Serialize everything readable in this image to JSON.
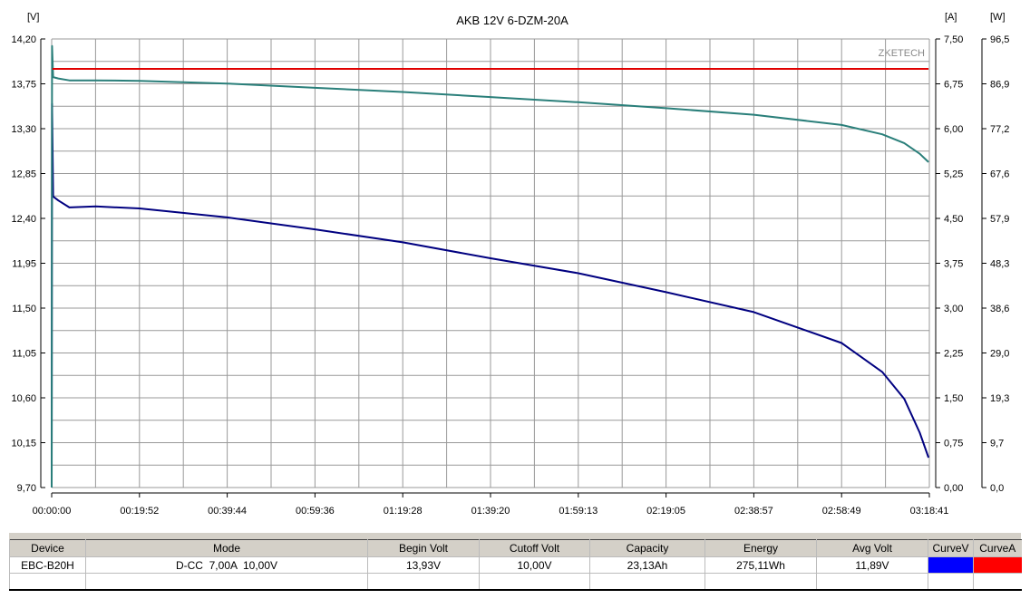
{
  "chart_data": {
    "type": "line",
    "title": "AKB 12V 6-DZM-20A",
    "watermark": "ZKETECH",
    "left_axis": {
      "unit": "[V]",
      "range": [
        9.7,
        14.2
      ],
      "ticks": [
        "14,20",
        "13,75",
        "13,30",
        "12,85",
        "12,40",
        "11,95",
        "11,50",
        "11,05",
        "10,60",
        "10,15",
        "9,70"
      ]
    },
    "right_axis_current": {
      "unit": "[A]",
      "range": [
        0,
        7.5
      ],
      "ticks": [
        "7,50",
        "6,75",
        "6,00",
        "5,25",
        "4,50",
        "3,75",
        "3,00",
        "2,25",
        "1,50",
        "0,75",
        "0,00"
      ]
    },
    "right_axis_power": {
      "unit": "[W]",
      "range": [
        0,
        96.5
      ],
      "ticks": [
        "96,5",
        "86,9",
        "77,2",
        "67,6",
        "57,9",
        "48,3",
        "38,6",
        "29,0",
        "19,3",
        "9,7",
        "0,0"
      ]
    },
    "x_axis": {
      "range": [
        "00:00:00",
        "03:18:41"
      ],
      "ticks": [
        "00:00:00",
        "00:19:52",
        "00:39:44",
        "00:59:36",
        "01:19:28",
        "01:39:20",
        "01:59:13",
        "02:19:05",
        "02:38:57",
        "02:58:49",
        "03:18:41"
      ]
    },
    "grid": true,
    "series": [
      {
        "axis": "V",
        "color": "#000080",
        "points": [
          [
            "00:00:00",
            9.7
          ],
          [
            "00:00:05",
            13.55
          ],
          [
            "00:00:20",
            12.62
          ],
          [
            "00:01:30",
            12.58
          ],
          [
            "00:04:00",
            12.51
          ],
          [
            "00:10:00",
            12.52
          ],
          [
            "00:19:52",
            12.5
          ],
          [
            "00:39:44",
            12.41
          ],
          [
            "00:59:36",
            12.29
          ],
          [
            "01:19:28",
            12.16
          ],
          [
            "01:39:20",
            12.0
          ],
          [
            "01:59:13",
            11.85
          ],
          [
            "02:19:05",
            11.66
          ],
          [
            "02:38:57",
            11.46
          ],
          [
            "02:58:49",
            11.15
          ],
          [
            "03:08:00",
            10.86
          ],
          [
            "03:13:00",
            10.59
          ],
          [
            "03:16:30",
            10.25
          ],
          [
            "03:18:30",
            10.0
          ]
        ]
      },
      {
        "axis": "W",
        "color": "#2a7f7a",
        "points": [
          [
            "00:00:00",
            0
          ],
          [
            "00:00:05",
            95.0
          ],
          [
            "00:00:20",
            88.3
          ],
          [
            "00:01:30",
            88.0
          ],
          [
            "00:04:00",
            87.6
          ],
          [
            "00:10:00",
            87.6
          ],
          [
            "00:19:52",
            87.5
          ],
          [
            "00:39:44",
            86.9
          ],
          [
            "00:59:36",
            86.0
          ],
          [
            "01:19:28",
            85.1
          ],
          [
            "01:39:20",
            84.0
          ],
          [
            "01:59:13",
            82.9
          ],
          [
            "02:19:05",
            81.6
          ],
          [
            "02:38:57",
            80.2
          ],
          [
            "02:58:49",
            78.0
          ],
          [
            "03:08:00",
            76.0
          ],
          [
            "03:13:00",
            74.1
          ],
          [
            "03:16:30",
            71.8
          ],
          [
            "03:18:30",
            70.0
          ]
        ]
      },
      {
        "axis": "A",
        "color": "#e00000",
        "points": [
          [
            "00:00:10",
            7.0
          ],
          [
            "03:18:30",
            7.0
          ]
        ]
      }
    ]
  },
  "table": {
    "headers": [
      "Device",
      "Mode",
      "Begin Volt",
      "Cutoff Volt",
      "Capacity",
      "Energy",
      "Avg Volt",
      "CurveV",
      "CurveA"
    ],
    "row": [
      "EBC-B20H",
      "D-CC  7,00A  10,00V",
      "13,93V",
      "10,00V",
      "23,13Ah",
      "275,11Wh",
      "11,89V"
    ],
    "curve_colors": [
      "#0000ff",
      "#ff0000"
    ]
  }
}
